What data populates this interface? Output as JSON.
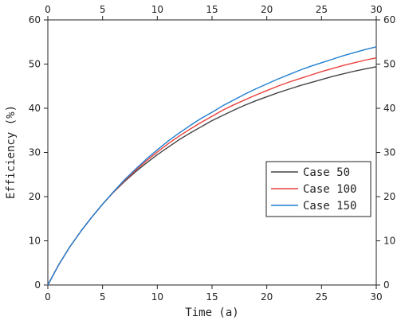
{
  "chart_data": {
    "type": "line",
    "xlabel": "Time (a)",
    "ylabel": "Efficiency (%)",
    "xlim": [
      0,
      30
    ],
    "ylim": [
      0,
      60
    ],
    "xticks": [
      0,
      5,
      10,
      15,
      20,
      25,
      30
    ],
    "yticks": [
      0,
      10,
      20,
      30,
      40,
      50,
      60
    ],
    "mirror_axes": true,
    "grid": false,
    "legend_position": "right",
    "x": [
      0,
      1,
      2,
      3,
      4,
      5,
      6,
      7,
      8,
      9,
      10,
      11,
      12,
      13,
      14,
      15,
      16,
      17,
      18,
      19,
      20,
      21,
      22,
      23,
      24,
      25,
      26,
      27,
      28,
      29,
      30
    ],
    "series": [
      {
        "name": "Case 50",
        "color": "#444444",
        "values": [
          0,
          4.6,
          8.6,
          12.1,
          15.3,
          18.3,
          21.0,
          23.4,
          25.6,
          27.6,
          29.5,
          31.2,
          32.9,
          34.4,
          35.8,
          37.2,
          38.4,
          39.6,
          40.7,
          41.7,
          42.6,
          43.5,
          44.3,
          45.1,
          45.8,
          46.5,
          47.2,
          47.8,
          48.4,
          48.9,
          49.4
        ]
      },
      {
        "name": "Case 100",
        "color": "#e8413c",
        "values": [
          0,
          4.6,
          8.6,
          12.1,
          15.3,
          18.3,
          21.0,
          23.6,
          25.9,
          28.1,
          30.1,
          32.0,
          33.7,
          35.3,
          36.8,
          38.2,
          39.6,
          40.8,
          41.9,
          43.0,
          44.0,
          45.0,
          45.9,
          46.7,
          47.5,
          48.3,
          49.0,
          49.7,
          50.3,
          50.9,
          51.4
        ]
      },
      {
        "name": "Case 150",
        "color": "#1f7fd1",
        "values": [
          0,
          4.6,
          8.6,
          12.1,
          15.3,
          18.3,
          21.1,
          23.8,
          26.2,
          28.5,
          30.6,
          32.6,
          34.4,
          36.1,
          37.7,
          39.1,
          40.6,
          41.9,
          43.2,
          44.4,
          45.5,
          46.6,
          47.6,
          48.6,
          49.5,
          50.3,
          51.1,
          51.9,
          52.6,
          53.3,
          53.9
        ]
      }
    ]
  }
}
